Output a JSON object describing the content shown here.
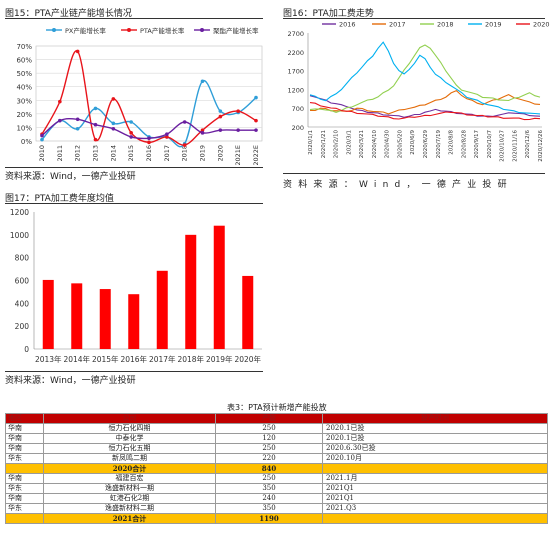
{
  "fig15": {
    "title": "图15：PTA产业链产能增长情况",
    "source": "资料来源：Wind，一德产业投研",
    "chart_data": {
      "type": "line",
      "categories": [
        "2010",
        "2011",
        "2012",
        "2013",
        "2014",
        "2015",
        "2016",
        "2017",
        "2018",
        "2019",
        "2020",
        "2021E",
        "2022E"
      ],
      "ylim": [
        0,
        70
      ],
      "yticks": [
        "0%",
        "10%",
        "20%",
        "30%",
        "40%",
        "50%",
        "60%",
        "70%"
      ],
      "series": [
        {
          "name": "PX产能增长率",
          "color": "#2f9ed8",
          "values": [
            1,
            15,
            9,
            24,
            13,
            14,
            3,
            3,
            -2,
            44,
            22,
            21,
            32
          ]
        },
        {
          "name": "PTA产能增长率",
          "color": "#e8141b",
          "values": [
            5,
            29,
            66,
            1,
            31,
            6,
            -1,
            3,
            -3,
            8,
            18,
            22,
            15
          ]
        },
        {
          "name": "聚酯产能增长率",
          "color": "#6a1fa0",
          "values": [
            4,
            15,
            16,
            12,
            9,
            3,
            2,
            5,
            14,
            6,
            8,
            8,
            8
          ]
        }
      ]
    }
  },
  "fig16": {
    "title": "图16：PTA加工费走势",
    "source": "资料来源：Wind，一德产业投研",
    "chart_data": {
      "type": "line",
      "ylim": [
        200,
        2700
      ],
      "yticks": [
        "2700",
        "2200",
        "1700",
        "1200",
        "700",
        "200"
      ],
      "xticks": [
        "2020/1/1",
        "2020/1/21",
        "2020/2/10",
        "2020/3/1",
        "2020/3/21",
        "2020/4/10",
        "2020/4/30",
        "2020/5/20",
        "2020/6/9",
        "2020/6/29",
        "2020/7/19",
        "2020/8/8",
        "2020/8/28",
        "2020/9/17",
        "2020/10/7",
        "2020/10/27",
        "2020/11/16",
        "2020/12/6",
        "2020/12/26"
      ],
      "series": [
        {
          "name": "2016",
          "color": "#7030a0",
          "values": [
            1050,
            1000,
            950,
            900,
            850,
            820,
            780,
            760,
            700,
            650,
            620,
            600,
            580,
            560,
            540,
            520,
            500,
            480,
            470,
            490,
            520,
            550,
            600,
            620,
            650,
            640,
            620,
            600,
            580,
            560,
            540,
            520,
            500,
            490,
            480,
            500,
            520,
            540,
            560,
            580,
            560,
            540,
            520,
            500,
            480
          ]
        },
        {
          "name": "2017",
          "color": "#e46c0a",
          "values": [
            620,
            650,
            700,
            680,
            650,
            640,
            620,
            600,
            650,
            700,
            680,
            650,
            620,
            600,
            580,
            560,
            600,
            640,
            680,
            700,
            720,
            760,
            800,
            850,
            900,
            950,
            1000,
            1100,
            1150,
            1050,
            950,
            900,
            850,
            800,
            850,
            900,
            950,
            1000,
            1050,
            1000,
            950,
            900,
            850,
            820,
            800
          ]
        },
        {
          "name": "2018",
          "color": "#92d050",
          "values": [
            650,
            700,
            680,
            650,
            620,
            600,
            640,
            700,
            750,
            800,
            850,
            900,
            950,
            1000,
            1100,
            1200,
            1300,
            1500,
            1700,
            1900,
            2100,
            2300,
            2400,
            2300,
            2100,
            1900,
            1700,
            1500,
            1300,
            1200,
            1150,
            1100,
            1050,
            1000,
            980,
            960,
            940,
            920,
            900,
            950,
            1000,
            1050,
            1100,
            1050,
            1000
          ]
        },
        {
          "name": "2019",
          "color": "#00b0f0",
          "values": [
            1050,
            1000,
            950,
            900,
            1000,
            1100,
            1200,
            1350,
            1500,
            1650,
            1800,
            1950,
            2100,
            2300,
            2450,
            2200,
            1900,
            1700,
            1600,
            1750,
            1900,
            2100,
            2000,
            1800,
            1600,
            1500,
            1400,
            1300,
            1200,
            1100,
            1000,
            950,
            900,
            850,
            800,
            760,
            720,
            680,
            650,
            620,
            600,
            580,
            560,
            540,
            560
          ]
        },
        {
          "name": "2020",
          "color": "#e8141b",
          "values": [
            850,
            820,
            780,
            740,
            700,
            680,
            650,
            620,
            600,
            580,
            560,
            540,
            520,
            500,
            480,
            460,
            440,
            420,
            430,
            450,
            470,
            480,
            500,
            520,
            540,
            560,
            580,
            600,
            580,
            560,
            540,
            520,
            500,
            490,
            480,
            470,
            460,
            450,
            440,
            430,
            420,
            410,
            400,
            420,
            440
          ]
        }
      ]
    }
  },
  "fig17": {
    "title": "图17：PTA加工费年度均值",
    "source": "资料来源：Wind，一德产业投研",
    "chart_data": {
      "type": "bar",
      "categories": [
        "2013年",
        "2014年",
        "2015年",
        "2016年",
        "2017年",
        "2018年",
        "2019年",
        "2020年"
      ],
      "values": [
        605,
        575,
        525,
        480,
        685,
        1000,
        1080,
        640
      ],
      "ylim": [
        0,
        1200
      ],
      "yticks": [
        "0",
        "200",
        "400",
        "600",
        "800",
        "1000",
        "1200"
      ],
      "color": "#ff0000"
    }
  },
  "table3": {
    "title": "表3：PTA预计新增产能投放",
    "headers": [
      "地区",
      "公司",
      "产能",
      "投产时间"
    ],
    "rows": [
      {
        "region": "华南",
        "company": "恒力石化四期",
        "capacity": "250",
        "date": "2020.1已投",
        "total": false
      },
      {
        "region": "华南",
        "company": "中泰化学",
        "capacity": "120",
        "date": "2020.1已投",
        "total": false
      },
      {
        "region": "华南",
        "company": "恒力石化五期",
        "capacity": "250",
        "date": "2020.6.30已投",
        "total": false
      },
      {
        "region": "华东",
        "company": "新凤鸣二期",
        "capacity": "220",
        "date": "2020.10月",
        "total": false
      },
      {
        "region": "",
        "company": "2020合计",
        "capacity": "840",
        "date": "",
        "total": true
      },
      {
        "region": "华南",
        "company": "福建百宏",
        "capacity": "250",
        "date": "2021.1月",
        "total": false
      },
      {
        "region": "华东",
        "company": "逸盛新材料一期",
        "capacity": "350",
        "date": "2021Q1",
        "total": false
      },
      {
        "region": "华南",
        "company": "虹港石化2期",
        "capacity": "240",
        "date": "2021Q1",
        "total": false
      },
      {
        "region": "华东",
        "company": "逸盛新材料二期",
        "capacity": "350",
        "date": "2021.Q3",
        "total": false
      },
      {
        "region": "",
        "company": "2021合计",
        "capacity": "1190",
        "date": "",
        "total": true
      }
    ]
  }
}
